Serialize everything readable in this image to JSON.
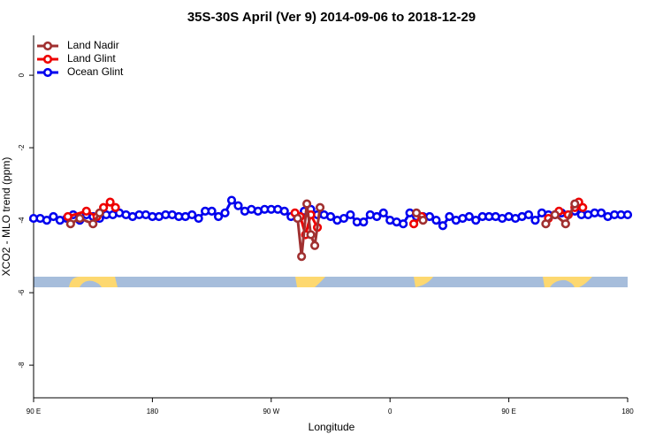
{
  "chart_data": {
    "type": "line",
    "title": "35S-30S April (Ver 9)   2014-09-06 to 2018-12-29",
    "xlabel": "Longitude",
    "ylabel": "XCO2 - MLO trend (ppm)",
    "xlim": [
      90,
      540
    ],
    "xticks": [
      {
        "value": 90,
        "label": "90 E"
      },
      180,
      {
        "value": 270,
        "label": "90 W"
      },
      {
        "value": 360,
        "label": "0"
      },
      {
        "value": 450,
        "label": "90 E"
      },
      {
        "value": 540,
        "label": "180"
      }
    ],
    "ylim": [
      -8.9,
      1.1
    ],
    "yticks": [
      0,
      -2,
      -4,
      -6,
      -8
    ],
    "legend": "top-left",
    "series": [
      {
        "name": "Land Nadir",
        "color": "#a03030",
        "x": [
          118,
          125,
          135,
          140,
          200,
          290,
          293,
          297,
          300,
          303,
          307,
          340,
          380,
          385,
          430,
          478,
          485,
          493,
          500
        ],
        "values": [
          -4.1,
          -3.95,
          -4.1,
          -3.8,
          null,
          -3.95,
          -5.0,
          -3.55,
          -4.4,
          -4.7,
          -3.65,
          null,
          -3.8,
          -4.0,
          null,
          -4.1,
          -3.85,
          -4.1,
          -3.55
        ]
      },
      {
        "name": "Land Glint",
        "color": "#ee0000",
        "x": [
          116,
          130,
          138,
          143,
          148,
          152,
          200,
          288,
          292,
          296,
          300,
          305,
          340,
          378,
          384,
          430,
          480,
          488,
          495,
          500,
          503,
          506
        ],
        "values": [
          -3.9,
          -3.75,
          -3.9,
          -3.65,
          -3.5,
          -3.65,
          null,
          -3.8,
          -3.9,
          -4.4,
          -3.85,
          -4.2,
          null,
          -4.1,
          -3.9,
          null,
          -3.95,
          -3.75,
          -3.85,
          -3.65,
          -3.5,
          -3.65
        ]
      },
      {
        "name": "Ocean Glint",
        "color": "#0000ee",
        "x": [
          90,
          95,
          100,
          105,
          110,
          115,
          120,
          125,
          130,
          135,
          140,
          145,
          150,
          155,
          160,
          165,
          170,
          175,
          180,
          185,
          190,
          195,
          200,
          205,
          210,
          215,
          220,
          225,
          230,
          235,
          240,
          245,
          250,
          255,
          260,
          265,
          270,
          275,
          280,
          285,
          290,
          295,
          300,
          305,
          310,
          315,
          320,
          325,
          330,
          335,
          340,
          345,
          350,
          355,
          360,
          365,
          370,
          375,
          380,
          385,
          390,
          395,
          400,
          405,
          410,
          415,
          420,
          425,
          430,
          435,
          440,
          445,
          450,
          455,
          460,
          465,
          470,
          475,
          480,
          485,
          490,
          495,
          500,
          505,
          510,
          515,
          520,
          525,
          530,
          535,
          540
        ],
        "values": [
          -3.95,
          -3.95,
          -4.0,
          -3.9,
          -4.0,
          -3.95,
          -3.85,
          -4.0,
          -3.85,
          -3.9,
          -3.95,
          -3.85,
          -3.85,
          -3.8,
          -3.85,
          -3.9,
          -3.85,
          -3.85,
          -3.9,
          -3.9,
          -3.85,
          -3.85,
          -3.9,
          -3.9,
          -3.85,
          -3.95,
          -3.75,
          -3.75,
          -3.9,
          -3.8,
          -3.45,
          -3.6,
          -3.75,
          -3.7,
          -3.75,
          -3.7,
          -3.7,
          -3.7,
          -3.75,
          -3.9,
          -3.95,
          -3.75,
          -3.7,
          -3.85,
          -3.85,
          -3.9,
          -4.0,
          -3.95,
          -3.85,
          -4.05,
          -4.05,
          -3.85,
          -3.9,
          -3.8,
          -4.0,
          -4.05,
          -4.1,
          -3.8,
          -3.9,
          -3.9,
          -3.9,
          -4.0,
          -4.15,
          -3.9,
          -4.0,
          -3.95,
          -3.9,
          -4.0,
          -3.9,
          -3.9,
          -3.9,
          -3.95,
          -3.9,
          -3.95,
          -3.9,
          -3.85,
          -4.0,
          -3.8,
          -3.85,
          -3.85,
          -3.8,
          -3.85,
          -3.75,
          -3.85,
          -3.85,
          -3.8,
          -3.8,
          -3.9,
          -3.85,
          -3.85,
          -3.85
        ]
      }
    ]
  }
}
